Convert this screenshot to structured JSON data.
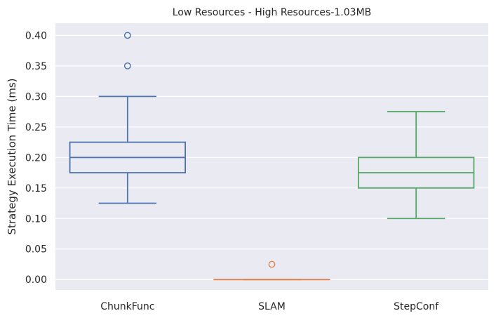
{
  "chart_data": {
    "type": "box",
    "title": "Low Resources - High Resources-1.03MB",
    "xlabel": "",
    "ylabel": "Strategy Execution Time (ms)",
    "ylim": [
      -0.017,
      0.42
    ],
    "yticks": [
      "0.00",
      "0.05",
      "0.10",
      "0.15",
      "0.20",
      "0.25",
      "0.30",
      "0.35",
      "0.40"
    ],
    "grid": true,
    "categories": [
      "ChunkFunc",
      "SLAM",
      "StepConf"
    ],
    "boxes": [
      {
        "category": "ChunkFunc",
        "color": "#4c72b0",
        "whisker_low": 0.125,
        "q1": 0.175,
        "median": 0.2,
        "q3": 0.225,
        "whisker_high": 0.3,
        "outliers": [
          0.35,
          0.4
        ]
      },
      {
        "category": "SLAM",
        "color": "#dd8452",
        "whisker_low": 0.0,
        "q1": 0.0,
        "median": 0.0,
        "q3": 0.0,
        "whisker_high": 0.0,
        "outliers": [
          0.025
        ]
      },
      {
        "category": "StepConf",
        "color": "#55a868",
        "whisker_low": 0.1,
        "q1": 0.15,
        "median": 0.175,
        "q3": 0.2,
        "whisker_high": 0.275,
        "outliers": []
      }
    ],
    "colors": {
      "background": "#eaeaf2",
      "grid": "#ffffff",
      "text": "#262626"
    }
  }
}
